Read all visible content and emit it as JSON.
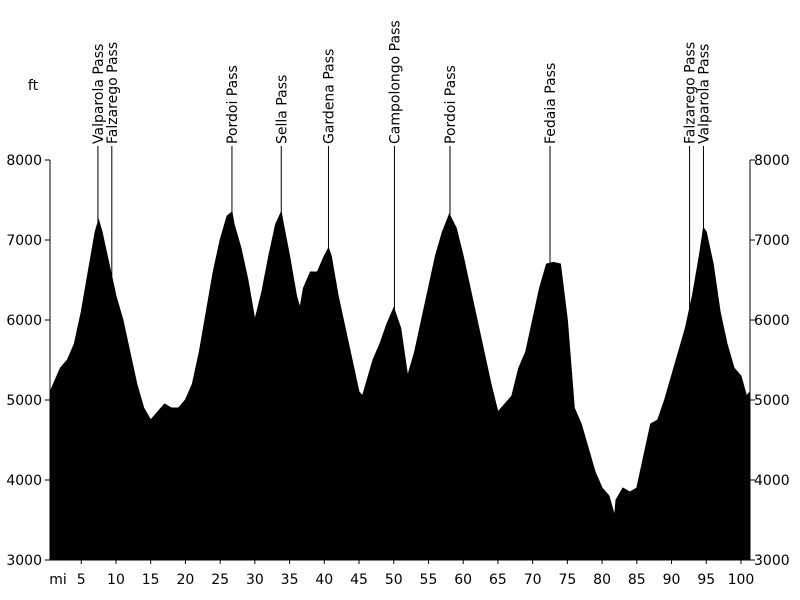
{
  "chart_data": {
    "type": "area",
    "x_unit": "mi",
    "y_unit": "ft",
    "color": "#000000",
    "xlim": [
      0.5,
      101.3
    ],
    "ylim": [
      3000,
      8000
    ],
    "xticks": [
      5,
      10,
      15,
      20,
      25,
      30,
      35,
      40,
      45,
      50,
      55,
      60,
      65,
      70,
      75,
      80,
      85,
      90,
      95,
      100
    ],
    "yticks": [
      3000,
      4000,
      5000,
      6000,
      7000,
      8000
    ],
    "x": [
      0.5,
      1,
      2,
      3,
      4,
      5,
      6,
      7,
      7.5,
      8,
      9,
      10,
      11,
      12,
      13,
      14,
      15,
      16,
      17,
      18,
      19,
      20,
      21,
      22,
      23,
      24,
      25,
      26,
      26.7,
      27,
      28,
      29,
      30,
      31,
      32,
      33,
      33.8,
      34,
      35,
      36,
      36.5,
      37,
      38,
      39,
      40,
      40.6,
      41,
      42,
      43,
      44,
      45,
      45.5,
      46,
      47,
      48,
      49,
      50,
      51,
      52,
      53,
      54,
      55,
      56,
      57,
      58,
      59,
      60,
      61,
      62,
      63,
      64,
      65,
      66,
      67,
      68,
      69,
      70,
      71,
      72,
      73,
      74,
      75,
      76,
      77,
      78,
      79,
      80,
      81,
      81.8,
      82,
      83,
      84,
      85,
      86,
      87,
      88,
      89,
      90,
      91,
      92,
      93,
      94,
      94.6,
      95,
      96,
      97,
      98,
      99,
      100,
      100.8,
      101.3
    ],
    "values": [
      5100,
      5200,
      5400,
      5500,
      5700,
      6100,
      6600,
      7100,
      7250,
      7100,
      6700,
      6300,
      6000,
      5600,
      5200,
      4900,
      4750,
      4850,
      4950,
      4900,
      4900,
      5000,
      5200,
      5600,
      6100,
      6600,
      7000,
      7300,
      7350,
      7200,
      6900,
      6500,
      6000,
      6350,
      6800,
      7200,
      7350,
      7250,
      6800,
      6300,
      6150,
      6400,
      6600,
      6600,
      6800,
      6900,
      6800,
      6300,
      5900,
      5500,
      5100,
      5050,
      5200,
      5500,
      5700,
      5950,
      6150,
      5900,
      5300,
      5600,
      6000,
      6400,
      6800,
      7100,
      7320,
      7150,
      6800,
      6400,
      6000,
      5600,
      5200,
      4850,
      4950,
      5050,
      5400,
      5600,
      6000,
      6400,
      6700,
      6720,
      6700,
      6000,
      4900,
      4700,
      4400,
      4100,
      3900,
      3800,
      3550,
      3750,
      3900,
      3850,
      3900,
      4300,
      4700,
      4750,
      5000,
      5300,
      5600,
      5900,
      6300,
      6800,
      7150,
      7100,
      6700,
      6100,
      5700,
      5400,
      5300,
      5050,
      5100
    ],
    "annotations": [
      {
        "label": "Valparola Pass",
        "x": 7.4
      },
      {
        "label": "Falzarego Pass",
        "x": 9.4
      },
      {
        "label": "Pordoi Pass",
        "x": 26.7
      },
      {
        "label": "Sella Pass",
        "x": 33.8
      },
      {
        "label": "Gardena Pass",
        "x": 40.6
      },
      {
        "label": "Campolongo Pass",
        "x": 50.1
      },
      {
        "label": "Pordoi Pass",
        "x": 58.1
      },
      {
        "label": "Fedaia Pass",
        "x": 72.5
      },
      {
        "label": "Falzarego Pass",
        "x": 92.6
      },
      {
        "label": "Valparola Pass",
        "x": 94.6
      }
    ]
  }
}
